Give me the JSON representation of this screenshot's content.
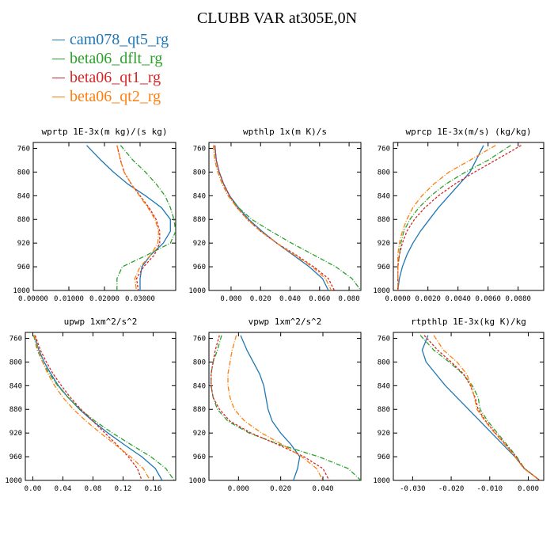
{
  "title": "CLUBB VAR at305E,0N",
  "legend": [
    {
      "name": "cam078_qt5_rg",
      "color": "#1f77b4"
    },
    {
      "name": "beta06_dflt_rg",
      "color": "#2ca02c"
    },
    {
      "name": "beta06_qt1_rg",
      "color": "#d62728"
    },
    {
      "name": "beta06_qt2_rg",
      "color": "#ff7f0e"
    }
  ],
  "chart_data": [
    {
      "type": "line",
      "title": "wprtp  1E-3x(m kg)/(s kg)",
      "xlim": [
        0.0,
        0.04
      ],
      "ylim": [
        1000,
        750
      ],
      "xticks": [
        "0.00000",
        "0.01000",
        "0.02000",
        "0.03000"
      ],
      "xtick_values": [
        0,
        0.01,
        0.02,
        0.03
      ],
      "yticks": [
        "760",
        "800",
        "840",
        "880",
        "920",
        "960",
        "1000"
      ],
      "ytick_values": [
        760,
        800,
        840,
        880,
        920,
        960,
        1000
      ],
      "p": [
        755,
        780,
        800,
        820,
        840,
        860,
        880,
        900,
        920,
        940,
        960,
        980,
        1000
      ],
      "series": [
        {
          "name": "cam078_qt5_rg",
          "color": "#1f77b4",
          "dash": "",
          "x": [
            0.015,
            0.019,
            0.0225,
            0.0265,
            0.0315,
            0.036,
            0.0385,
            0.0385,
            0.0365,
            0.033,
            0.0305,
            0.03,
            0.03
          ]
        },
        {
          "name": "beta06_dflt_rg",
          "color": "#2ca02c",
          "dash": "6,2,1,2",
          "x": [
            0.0245,
            0.028,
            0.0315,
            0.0345,
            0.037,
            0.0385,
            0.0395,
            0.04,
            0.0385,
            0.032,
            0.025,
            0.0235,
            0.0235
          ]
        },
        {
          "name": "beta06_qt1_rg",
          "color": "#d62728",
          "dash": "3,2",
          "x": [
            0.0235,
            0.0245,
            0.0255,
            0.0275,
            0.03,
            0.0325,
            0.0345,
            0.0355,
            0.0355,
            0.034,
            0.031,
            0.029,
            0.0295
          ]
        },
        {
          "name": "beta06_qt2_rg",
          "color": "#ff7f0e",
          "dash": "6,2,1,2",
          "x": [
            0.0235,
            0.0245,
            0.0255,
            0.0275,
            0.0298,
            0.0322,
            0.0342,
            0.0352,
            0.035,
            0.033,
            0.03,
            0.0285,
            0.029
          ]
        }
      ]
    },
    {
      "type": "line",
      "title": "wpthlp  1x(m K)/s",
      "xlim": [
        -0.015,
        0.088
      ],
      "ylim": [
        1000,
        750
      ],
      "xticks": [
        "0.000",
        "0.020",
        "0.040",
        "0.060",
        "0.080"
      ],
      "xtick_values": [
        0,
        0.02,
        0.04,
        0.06,
        0.08
      ],
      "yticks": [
        "760",
        "800",
        "840",
        "880",
        "920",
        "960",
        "1000"
      ],
      "ytick_values": [
        760,
        800,
        840,
        880,
        920,
        960,
        1000
      ],
      "p": [
        755,
        780,
        800,
        820,
        840,
        860,
        880,
        900,
        920,
        940,
        960,
        980,
        1000
      ],
      "series": [
        {
          "name": "cam078_qt5_rg",
          "color": "#1f77b4",
          "dash": "",
          "x": [
            -0.011,
            -0.01,
            -0.008,
            -0.005,
            -0.001,
            0.005,
            0.012,
            0.021,
            0.031,
            0.042,
            0.053,
            0.062,
            0.066
          ]
        },
        {
          "name": "beta06_dflt_rg",
          "color": "#2ca02c",
          "dash": "6,2,1,2",
          "x": [
            -0.012,
            -0.011,
            -0.009,
            -0.006,
            -0.002,
            0.005,
            0.014,
            0.027,
            0.041,
            0.056,
            0.071,
            0.082,
            0.088
          ]
        },
        {
          "name": "beta06_qt1_rg",
          "color": "#d62728",
          "dash": "3,2",
          "x": [
            -0.011,
            -0.01,
            -0.008,
            -0.005,
            -0.001,
            0.004,
            0.011,
            0.02,
            0.031,
            0.044,
            0.056,
            0.066,
            0.07
          ]
        },
        {
          "name": "beta06_qt2_rg",
          "color": "#ff7f0e",
          "dash": "6,2,1,2",
          "x": [
            -0.012,
            -0.011,
            -0.009,
            -0.006,
            -0.002,
            0.004,
            0.011,
            0.02,
            0.031,
            0.043,
            0.055,
            0.064,
            0.068
          ]
        }
      ]
    },
    {
      "type": "line",
      "title": "wprcp  1E-3x(m/s) (kg/kg)",
      "xlim": [
        -0.0003,
        0.0097
      ],
      "ylim": [
        1000,
        750
      ],
      "xticks": [
        "0.0000",
        "0.0020",
        "0.0040",
        "0.0060",
        "0.0080"
      ],
      "xtick_values": [
        0,
        0.002,
        0.004,
        0.006,
        0.008
      ],
      "yticks": [
        "760",
        "800",
        "840",
        "880",
        "920",
        "960",
        "1000"
      ],
      "ytick_values": [
        760,
        800,
        840,
        880,
        920,
        960,
        1000
      ],
      "p": [
        755,
        780,
        800,
        820,
        840,
        860,
        880,
        900,
        920,
        940,
        960,
        980,
        1000
      ],
      "series": [
        {
          "name": "cam078_qt5_rg",
          "color": "#1f77b4",
          "dash": "",
          "x": [
            0.0057,
            0.0052,
            0.0048,
            0.0041,
            0.0034,
            0.0027,
            0.0021,
            0.0015,
            0.001,
            0.0006,
            0.0003,
            0.0001,
            0.0
          ]
        },
        {
          "name": "beta06_dflt_rg",
          "color": "#2ca02c",
          "dash": "6,2,1,2",
          "x": [
            0.0075,
            0.006,
            0.0045,
            0.0032,
            0.0022,
            0.0014,
            0.0008,
            0.0004,
            0.0002,
            0.0001,
            0.0,
            0.0,
            0.0
          ]
        },
        {
          "name": "beta06_qt1_rg",
          "color": "#d62728",
          "dash": "3,2",
          "x": [
            0.0082,
            0.0065,
            0.0051,
            0.0038,
            0.0027,
            0.0018,
            0.0011,
            0.0006,
            0.0003,
            0.0001,
            0.0,
            0.0,
            0.0
          ]
        },
        {
          "name": "beta06_qt2_rg",
          "color": "#ff7f0e",
          "dash": "6,2,1,2",
          "x": [
            0.0065,
            0.0048,
            0.0034,
            0.0024,
            0.0016,
            0.001,
            0.0006,
            0.0003,
            0.0001,
            0.0,
            0.0,
            0.0,
            0.0
          ]
        }
      ]
    },
    {
      "type": "line",
      "title": "upwp  1xm^2/s^2",
      "xlim": [
        -0.01,
        0.19
      ],
      "ylim": [
        1000,
        750
      ],
      "xticks": [
        "0.00",
        "0.04",
        "0.08",
        "0.12",
        "0.16"
      ],
      "xtick_values": [
        0,
        0.04,
        0.08,
        0.12,
        0.16
      ],
      "yticks": [
        "760",
        "800",
        "840",
        "880",
        "920",
        "960",
        "1000"
      ],
      "ytick_values": [
        760,
        800,
        840,
        880,
        920,
        960,
        1000
      ],
      "p": [
        755,
        780,
        800,
        820,
        840,
        860,
        880,
        900,
        920,
        940,
        960,
        980,
        1000
      ],
      "series": [
        {
          "name": "cam078_qt5_rg",
          "color": "#1f77b4",
          "dash": "",
          "x": [
            0.002,
            0.008,
            0.015,
            0.024,
            0.034,
            0.047,
            0.062,
            0.08,
            0.1,
            0.122,
            0.145,
            0.163,
            0.172
          ]
        },
        {
          "name": "beta06_dflt_rg",
          "color": "#2ca02c",
          "dash": "6,2,1,2",
          "x": [
            0.001,
            0.006,
            0.013,
            0.022,
            0.033,
            0.047,
            0.063,
            0.083,
            0.106,
            0.131,
            0.157,
            0.177,
            0.188
          ]
        },
        {
          "name": "beta06_qt1_rg",
          "color": "#d62728",
          "dash": "3,2",
          "x": [
            0.003,
            0.01,
            0.018,
            0.027,
            0.038,
            0.05,
            0.064,
            0.08,
            0.096,
            0.112,
            0.127,
            0.139,
            0.145
          ]
        },
        {
          "name": "beta06_qt2_rg",
          "color": "#ff7f0e",
          "dash": "6,2,1,2",
          "x": [
            0.002,
            0.007,
            0.013,
            0.02,
            0.029,
            0.04,
            0.054,
            0.071,
            0.09,
            0.11,
            0.13,
            0.147,
            0.156
          ]
        }
      ]
    },
    {
      "type": "line",
      "title": "vpwp  1xm^2/s^2",
      "xlim": [
        -0.014,
        0.058
      ],
      "ylim": [
        1000,
        750
      ],
      "xticks": [
        "0.000",
        "0.020",
        "0.040"
      ],
      "xtick_values": [
        0,
        0.02,
        0.04
      ],
      "yticks": [
        "760",
        "800",
        "840",
        "880",
        "920",
        "960",
        "1000"
      ],
      "ytick_values": [
        760,
        800,
        840,
        880,
        920,
        960,
        1000
      ],
      "p": [
        755,
        780,
        800,
        820,
        840,
        860,
        880,
        900,
        920,
        940,
        960,
        980,
        1000
      ],
      "series": [
        {
          "name": "cam078_qt5_rg",
          "color": "#1f77b4",
          "dash": "",
          "x": [
            0.001,
            0.004,
            0.007,
            0.01,
            0.012,
            0.013,
            0.014,
            0.016,
            0.02,
            0.025,
            0.029,
            0.028,
            0.026
          ]
        },
        {
          "name": "beta06_dflt_rg",
          "color": "#2ca02c",
          "dash": "6,2,1,2",
          "x": [
            -0.008,
            -0.01,
            -0.012,
            -0.013,
            -0.013,
            -0.012,
            -0.01,
            -0.005,
            0.005,
            0.02,
            0.038,
            0.052,
            0.058
          ]
        },
        {
          "name": "beta06_qt1_rg",
          "color": "#d62728",
          "dash": "3,2",
          "x": [
            -0.009,
            -0.011,
            -0.012,
            -0.013,
            -0.013,
            -0.012,
            -0.009,
            -0.004,
            0.006,
            0.019,
            0.031,
            0.04,
            0.043
          ]
        },
        {
          "name": "beta06_qt2_rg",
          "color": "#ff7f0e",
          "dash": "6,2,1,2",
          "x": [
            -0.001,
            -0.003,
            -0.004,
            -0.005,
            -0.005,
            -0.004,
            -0.002,
            0.003,
            0.011,
            0.021,
            0.03,
            0.037,
            0.04
          ]
        }
      ]
    },
    {
      "type": "line",
      "title": "rtpthlp  1E-3x(kg K)/kg",
      "xlim": [
        -0.035,
        0.004
      ],
      "ylim": [
        1000,
        750
      ],
      "xticks": [
        "-0.030",
        "-0.020",
        "-0.010",
        "0.000"
      ],
      "xtick_values": [
        -0.03,
        -0.02,
        -0.01,
        0
      ],
      "yticks": [
        "760",
        "800",
        "840",
        "880",
        "920",
        "960",
        "1000"
      ],
      "ytick_values": [
        760,
        800,
        840,
        880,
        920,
        960,
        1000
      ],
      "p": [
        755,
        780,
        800,
        820,
        840,
        860,
        880,
        900,
        920,
        940,
        960,
        980,
        1000
      ],
      "series": [
        {
          "name": "cam078_qt5_rg",
          "color": "#1f77b4",
          "dash": "",
          "x": [
            -0.026,
            -0.0275,
            -0.0265,
            -0.024,
            -0.0215,
            -0.0185,
            -0.0155,
            -0.0125,
            -0.0095,
            -0.0065,
            -0.0035,
            -0.001,
            0.003
          ]
        },
        {
          "name": "beta06_dflt_rg",
          "color": "#2ca02c",
          "dash": "6,2,1,2",
          "x": [
            -0.028,
            -0.0245,
            -0.0205,
            -0.017,
            -0.0145,
            -0.013,
            -0.0125,
            -0.0105,
            -0.008,
            -0.0055,
            -0.003,
            -0.001,
            0.003
          ]
        },
        {
          "name": "beta06_qt1_rg",
          "color": "#d62728",
          "dash": "3,2",
          "x": [
            -0.027,
            -0.0235,
            -0.02,
            -0.0168,
            -0.015,
            -0.0138,
            -0.013,
            -0.011,
            -0.0085,
            -0.0058,
            -0.0032,
            -0.001,
            0.003
          ]
        },
        {
          "name": "beta06_qt2_rg",
          "color": "#ff7f0e",
          "dash": "6,2,1,2",
          "x": [
            -0.0245,
            -0.022,
            -0.0185,
            -0.016,
            -0.0148,
            -0.014,
            -0.0133,
            -0.0112,
            -0.0087,
            -0.006,
            -0.0034,
            -0.0012,
            0.003
          ]
        }
      ]
    }
  ]
}
